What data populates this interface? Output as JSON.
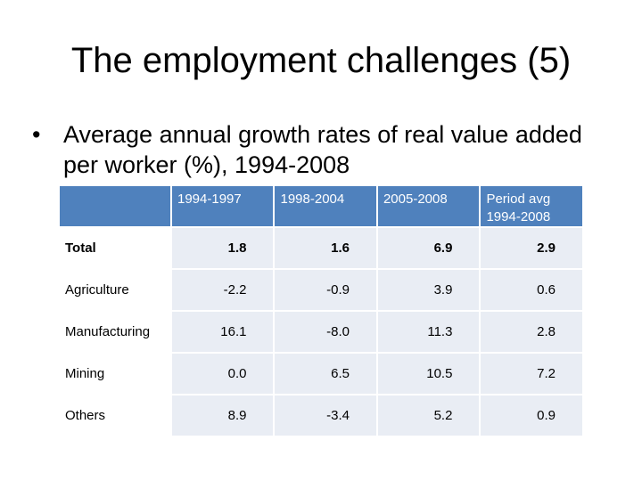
{
  "slide": {
    "title": "The employment challenges (5)",
    "bullet": "Average annual growth rates of real value added per worker (%), 1994-2008"
  },
  "table": {
    "headers": [
      "",
      "1994-1997",
      "1998-2004",
      "2005-2008",
      "Period avg 1994-2008"
    ],
    "rows": [
      {
        "label": "Total",
        "values": [
          "1.8",
          "1.6",
          "6.9",
          "2.9"
        ]
      },
      {
        "label": "Agriculture",
        "values": [
          "-2.2",
          "-0.9",
          "3.9",
          "0.6"
        ]
      },
      {
        "label": "Manufacturing",
        "values": [
          "16.1",
          "-8.0",
          "11.3",
          "2.8"
        ]
      },
      {
        "label": "Mining",
        "values": [
          "0.0",
          "6.5",
          "10.5",
          "7.2"
        ]
      },
      {
        "label": "Others",
        "values": [
          "8.9",
          "-3.4",
          "5.2",
          "0.9"
        ]
      }
    ]
  }
}
